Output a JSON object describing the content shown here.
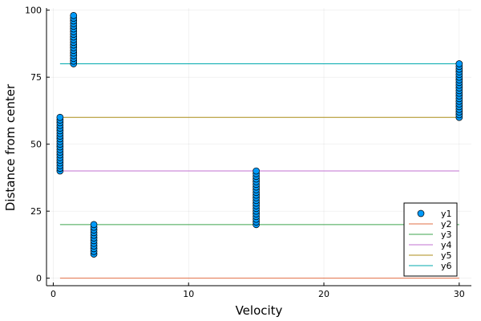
{
  "chart_data": {
    "type": "scatter",
    "title": "",
    "xlabel": "Velocity",
    "ylabel": "Distance from center",
    "xlim": [
      -0.5,
      30.9
    ],
    "ylim": [
      -2.8,
      100.8
    ],
    "x_ticks": [
      0,
      10,
      20,
      30
    ],
    "y_ticks": [
      0,
      25,
      50,
      75,
      100
    ],
    "grid": true,
    "legend_position": "bottom-right",
    "scatter_series": {
      "name": "y1",
      "color": "#009AFA",
      "groups": [
        {
          "x": 0.5,
          "y": [
            40,
            41,
            42,
            43,
            44,
            45,
            46,
            47,
            48,
            49,
            50,
            51,
            52,
            53,
            54,
            55,
            56,
            57,
            58,
            59,
            60
          ]
        },
        {
          "x": 1.5,
          "y": [
            80,
            81,
            82,
            83,
            84,
            85,
            86,
            87,
            88,
            89,
            90,
            91,
            92,
            93,
            94,
            95,
            96,
            97,
            98
          ]
        },
        {
          "x": 3,
          "y": [
            9,
            10,
            11,
            12,
            13,
            14,
            15,
            16,
            17,
            18,
            19,
            20
          ]
        },
        {
          "x": 15,
          "y": [
            20,
            21,
            22,
            23,
            24,
            25,
            26,
            27,
            28,
            29,
            30,
            31,
            32,
            33,
            34,
            35,
            36,
            37,
            38,
            39,
            40
          ]
        },
        {
          "x": 30,
          "y": [
            60,
            61,
            62,
            63,
            64,
            65,
            66,
            67,
            68,
            69,
            70,
            71,
            72,
            73,
            74,
            75,
            76,
            77,
            78,
            79,
            80
          ]
        }
      ]
    },
    "line_series": [
      {
        "name": "y2",
        "color": "#E26F46",
        "x": [
          0.5,
          30
        ],
        "y": [
          0,
          0
        ]
      },
      {
        "name": "y3",
        "color": "#3DA44D",
        "x": [
          0.5,
          30
        ],
        "y": [
          20,
          20
        ]
      },
      {
        "name": "y4",
        "color": "#C271D2",
        "x": [
          0.5,
          30
        ],
        "y": [
          40,
          40
        ]
      },
      {
        "name": "y5",
        "color": "#AC8E18",
        "x": [
          0.5,
          30
        ],
        "y": [
          60,
          60
        ]
      },
      {
        "name": "y6",
        "color": "#00A9AD",
        "x": [
          0.5,
          30
        ],
        "y": [
          80,
          80
        ]
      }
    ]
  }
}
